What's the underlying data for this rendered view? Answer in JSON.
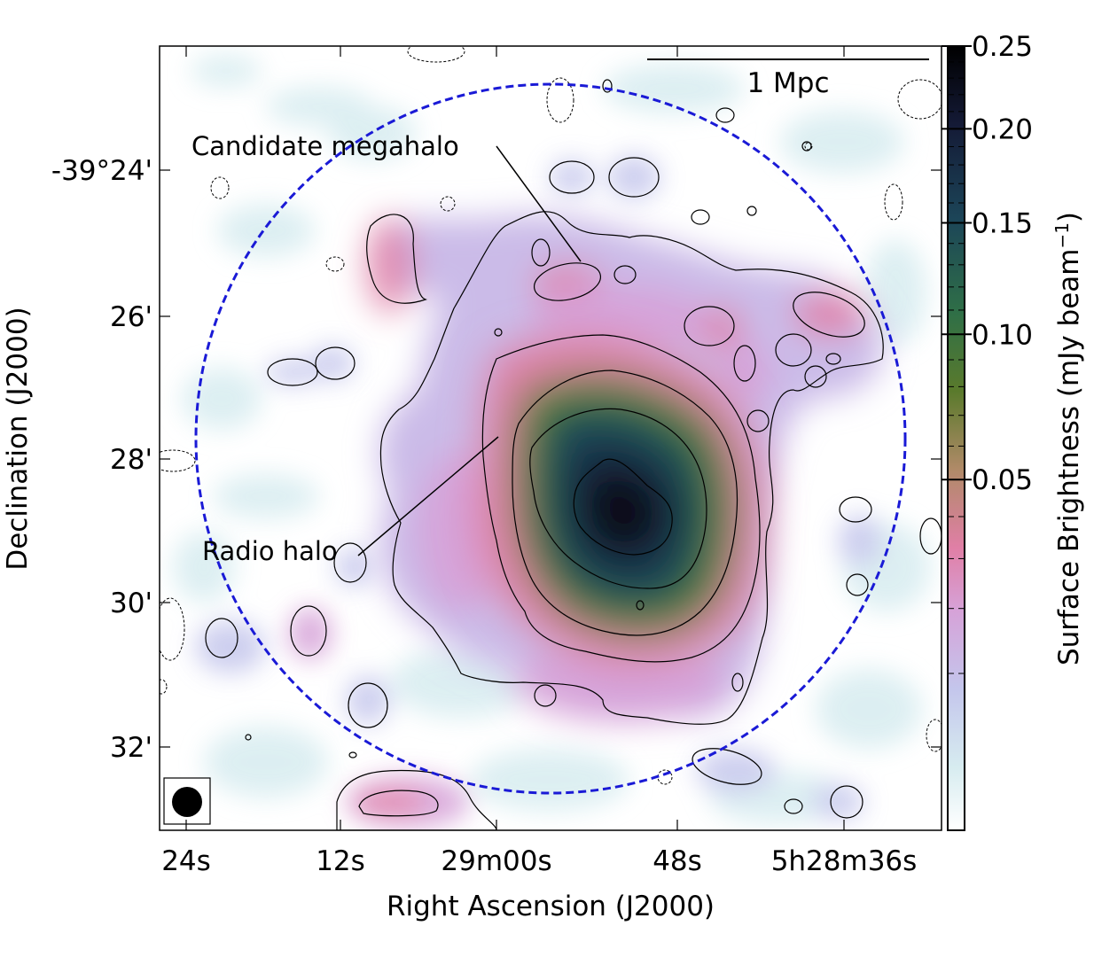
{
  "chart_data": {
    "type": "heatmap",
    "xlabel": "Right Ascension (J2000)",
    "ylabel": "Declination (J2000)",
    "x_tick_labels": [
      "24s",
      "12s",
      "29m00s",
      "48s",
      "5h28m36s"
    ],
    "y_tick_labels": [
      "-39°24'",
      "26'",
      "28'",
      "30'",
      "32'"
    ],
    "colorbar": {
      "label": "Surface Brightness (mJy beam",
      "label_superscript": "−1",
      "label_close": ")",
      "tick_labels": [
        "0.05",
        "0.10",
        "0.15",
        "0.20",
        "0.25"
      ],
      "ticks": [
        0.05,
        0.1,
        0.15,
        0.2,
        0.25
      ],
      "range": [
        0.0,
        0.25
      ],
      "colormap": [
        "#ffffff",
        "#d7ecf0",
        "#c4c6ec",
        "#d6a2d8",
        "#e07fa6",
        "#b08a68",
        "#5a7a2c",
        "#2f6f47",
        "#1c4558",
        "#141a36",
        "#000000"
      ]
    },
    "annotations": [
      {
        "text": "Candidate megahalo"
      },
      {
        "text": "Radio halo"
      },
      {
        "text": "1 Mpc"
      }
    ],
    "circle": {
      "style": "dashed",
      "color": "#1a1ad6"
    },
    "beam": {
      "shape": "circle",
      "color": "#000000"
    },
    "contours": {
      "positive": "solid",
      "negative": "dashed",
      "color": "#000000"
    },
    "grid": false
  }
}
